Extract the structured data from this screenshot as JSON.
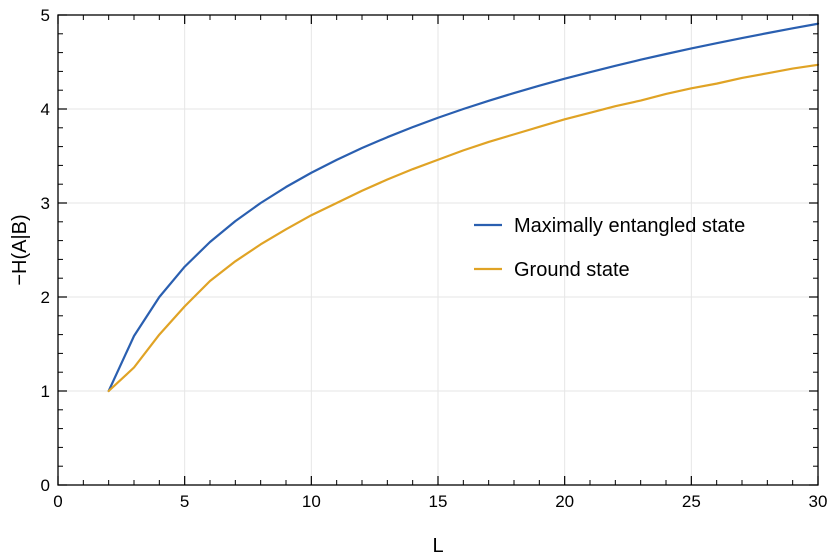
{
  "chart_data": {
    "type": "line",
    "xlabel": "L",
    "ylabel": "−H(A|B)",
    "xlim": [
      0,
      30
    ],
    "ylim": [
      0,
      5
    ],
    "xticks": [
      0,
      5,
      10,
      15,
      20,
      25,
      30
    ],
    "yticks": [
      0,
      1,
      2,
      3,
      4,
      5
    ],
    "x_minor_step": 1,
    "y_minor_step": 0.2,
    "grid": true,
    "legend_position": "center-right",
    "series": [
      {
        "name": "Maximally entangled state",
        "color": "#2a5fb0",
        "x": [
          2,
          3,
          4,
          5,
          6,
          7,
          8,
          9,
          10,
          11,
          12,
          13,
          14,
          15,
          16,
          17,
          18,
          19,
          20,
          21,
          22,
          23,
          24,
          25,
          26,
          27,
          28,
          29,
          30
        ],
        "y": [
          1.0,
          1.585,
          2.0,
          2.322,
          2.585,
          2.807,
          3.0,
          3.17,
          3.322,
          3.459,
          3.585,
          3.7,
          3.807,
          3.907,
          4.0,
          4.087,
          4.17,
          4.248,
          4.322,
          4.392,
          4.459,
          4.524,
          4.585,
          4.644,
          4.7,
          4.755,
          4.807,
          4.858,
          4.907
        ]
      },
      {
        "name": "Ground state",
        "color": "#e0a325",
        "x": [
          2,
          3,
          4,
          5,
          6,
          7,
          8,
          9,
          10,
          11,
          12,
          13,
          14,
          15,
          16,
          17,
          18,
          19,
          20,
          21,
          22,
          23,
          24,
          25,
          26,
          27,
          28,
          29,
          30
        ],
        "y": [
          1.0,
          1.25,
          1.6,
          1.9,
          2.17,
          2.38,
          2.56,
          2.72,
          2.87,
          3.0,
          3.13,
          3.25,
          3.36,
          3.46,
          3.56,
          3.65,
          3.73,
          3.81,
          3.89,
          3.96,
          4.03,
          4.09,
          4.16,
          4.22,
          4.27,
          4.33,
          4.38,
          4.43,
          4.47
        ]
      }
    ]
  }
}
